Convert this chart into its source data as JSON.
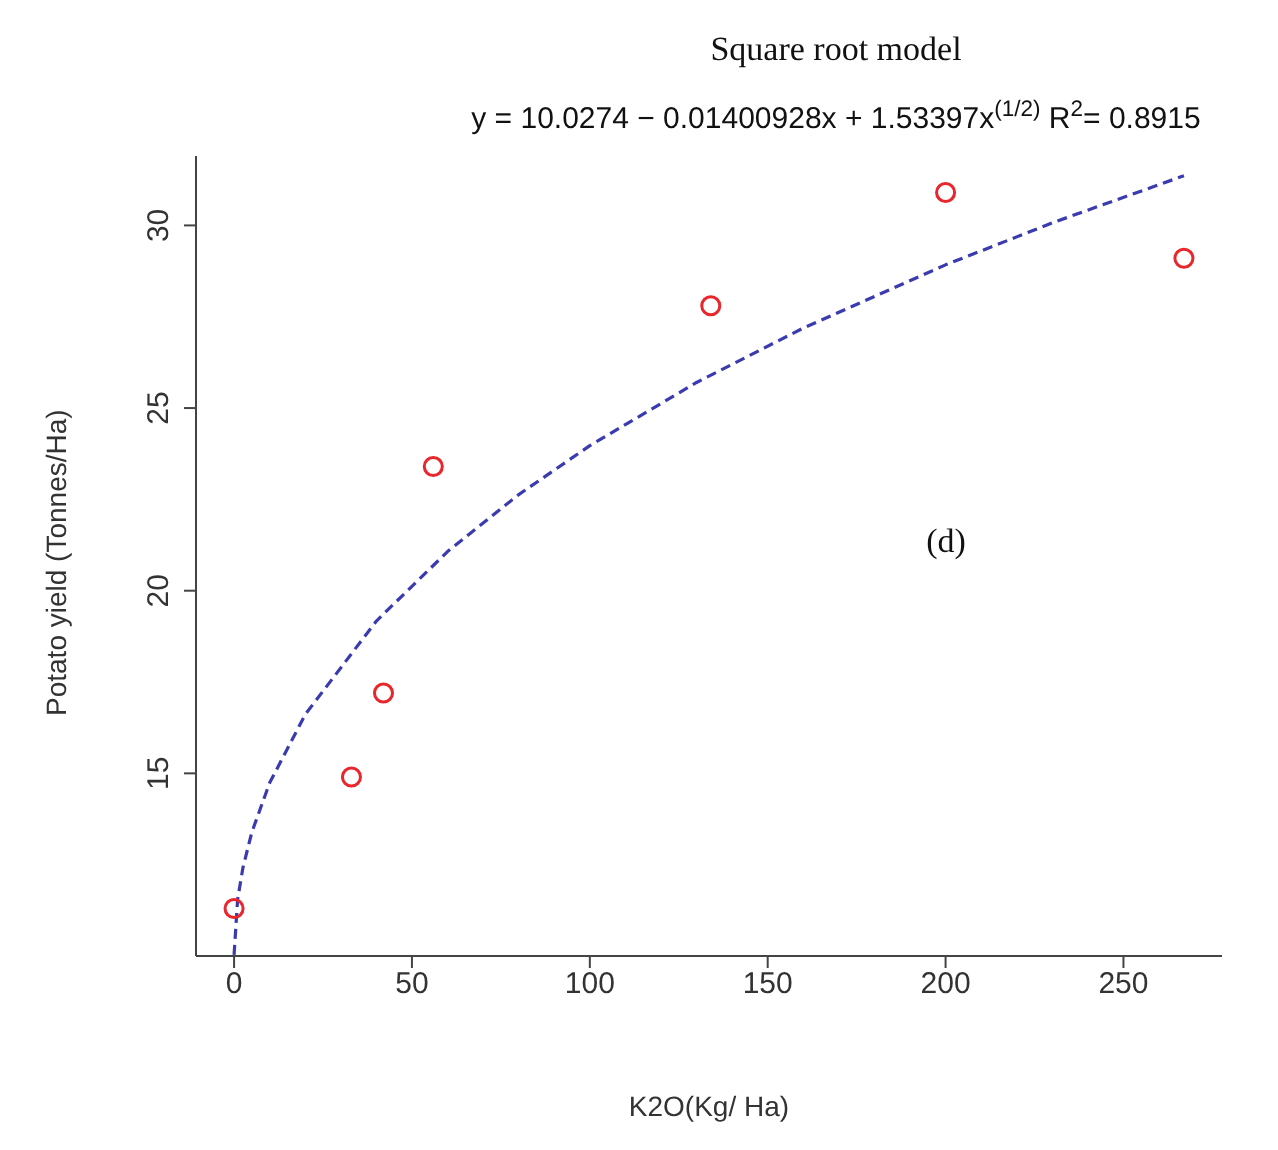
{
  "chart_data": {
    "type": "scatter",
    "title": "Square root model",
    "subtitle": "y = 10.0274 − 0.01400928x + 1.53397x$^{(1/2)}$ R$^{2}$= 0.8915",
    "xlabel": "K2O(Kg/ Ha)",
    "ylabel": "Potato yield (Tonnes/Ha)",
    "annotations": [
      "(d)"
    ],
    "xlim": [
      -10.7,
      277.7
    ],
    "xticks": [
      0,
      50,
      100,
      150,
      200,
      250
    ],
    "ylim": [
      10,
      31.9
    ],
    "yticks": [
      15,
      20,
      25,
      30
    ],
    "grid": false,
    "series": [
      {
        "color": "#e8262b",
        "marker": "circle",
        "x": [
          0,
          33,
          42,
          56,
          134,
          200,
          267
        ],
        "values": [
          11.3,
          14.9,
          17.2,
          23.4,
          27.8,
          30.9,
          29.1
        ]
      },
      {
        "type": "line",
        "color": "#3b3bb0",
        "line_style": "dashed",
        "marker": "none",
        "x": [
          0,
          1,
          2.5,
          5,
          10,
          20,
          40,
          60,
          80,
          100,
          130,
          160,
          200,
          230,
          267
        ],
        "values": [
          10.03,
          11.55,
          12.42,
          13.39,
          14.74,
          16.61,
          19.17,
          21.07,
          22.63,
          23.97,
          25.7,
          27.19,
          28.92,
          30.07,
          31.36
        ]
      }
    ]
  }
}
